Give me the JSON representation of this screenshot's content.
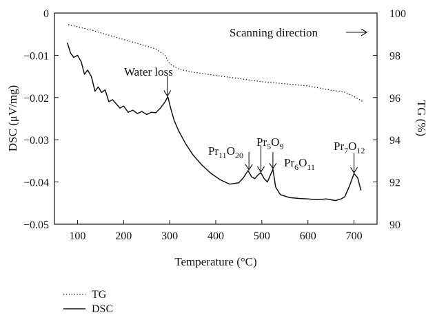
{
  "chart_data": {
    "type": "line",
    "xlabel": "Temperature (°C)",
    "ylabel_left": "DSC (μV/mg)",
    "ylabel_right": "TG (%)",
    "xlim": [
      50,
      750
    ],
    "ylim_left": [
      -0.05,
      0
    ],
    "ylim_right": [
      90,
      100
    ],
    "x_ticks": [
      100,
      200,
      300,
      400,
      500,
      600,
      700
    ],
    "y_left_ticks": [
      0,
      -0.01,
      -0.02,
      -0.03,
      -0.04,
      -0.05
    ],
    "y_left_tick_labels": [
      "0",
      "−0.01",
      "−0.02",
      "−0.03",
      "−0.04",
      "−0.05"
    ],
    "y_right_ticks": [
      100,
      98,
      96,
      94,
      92,
      90
    ],
    "grid": false,
    "legend_placement": "bottom-left",
    "series": [
      {
        "name": "TG",
        "axis": "right",
        "style": "dotted",
        "x": [
          80,
          100,
          130,
          160,
          200,
          240,
          270,
          290,
          300,
          320,
          350,
          400,
          450,
          500,
          550,
          600,
          650,
          680,
          700,
          720
        ],
        "y": [
          99.45,
          99.35,
          99.2,
          99.0,
          98.75,
          98.5,
          98.3,
          98.0,
          97.6,
          97.35,
          97.2,
          97.05,
          96.9,
          96.75,
          96.65,
          96.55,
          96.35,
          96.25,
          96.05,
          95.8
        ]
      },
      {
        "name": "DSC",
        "axis": "left",
        "style": "solid",
        "x": [
          78,
          85,
          92,
          100,
          108,
          115,
          122,
          130,
          138,
          145,
          152,
          160,
          168,
          176,
          184,
          192,
          200,
          210,
          220,
          230,
          240,
          250,
          260,
          270,
          280,
          290,
          296,
          302,
          310,
          320,
          335,
          350,
          370,
          390,
          410,
          430,
          450,
          460,
          470,
          478,
          485,
          492,
          498,
          505,
          512,
          518,
          524,
          530,
          540,
          560,
          580,
          600,
          620,
          640,
          660,
          672,
          680,
          690,
          700,
          708,
          715
        ],
        "y": [
          -0.007,
          -0.0095,
          -0.0105,
          -0.01,
          -0.0115,
          -0.0145,
          -0.0135,
          -0.015,
          -0.0185,
          -0.0175,
          -0.0188,
          -0.0182,
          -0.021,
          -0.0205,
          -0.0215,
          -0.0225,
          -0.022,
          -0.0235,
          -0.023,
          -0.0238,
          -0.0233,
          -0.024,
          -0.0235,
          -0.0236,
          -0.0225,
          -0.021,
          -0.0198,
          -0.0225,
          -0.0255,
          -0.028,
          -0.031,
          -0.0335,
          -0.036,
          -0.038,
          -0.0395,
          -0.0405,
          -0.0402,
          -0.039,
          -0.0373,
          -0.0388,
          -0.0392,
          -0.0383,
          -0.0378,
          -0.0392,
          -0.04,
          -0.0385,
          -0.037,
          -0.0412,
          -0.043,
          -0.0437,
          -0.0439,
          -0.044,
          -0.0442,
          -0.044,
          -0.0444,
          -0.044,
          -0.0435,
          -0.041,
          -0.038,
          -0.039,
          -0.042
        ]
      }
    ],
    "annotations": [
      {
        "id": "water",
        "text": "Water loss",
        "x": 295,
        "y": -0.0198
      },
      {
        "id": "pr11",
        "text": "Pr",
        "sub1": "11",
        "text2": "O",
        "sub2": "20",
        "x": 472,
        "y": -0.0373
      },
      {
        "id": "pr5",
        "text": "Pr",
        "sub1": "5",
        "text2": "O",
        "sub2": "9",
        "x": 498,
        "y": -0.0378
      },
      {
        "id": "pr6",
        "text": "Pr",
        "sub1": "6",
        "text2": "O",
        "sub2": "11",
        "x": 524,
        "y": -0.037
      },
      {
        "id": "pr7",
        "text": "Pr",
        "sub1": "7",
        "text2": "O",
        "sub2": "12",
        "x": 700,
        "y": -0.038
      }
    ],
    "scan_label": "Scanning direction"
  }
}
